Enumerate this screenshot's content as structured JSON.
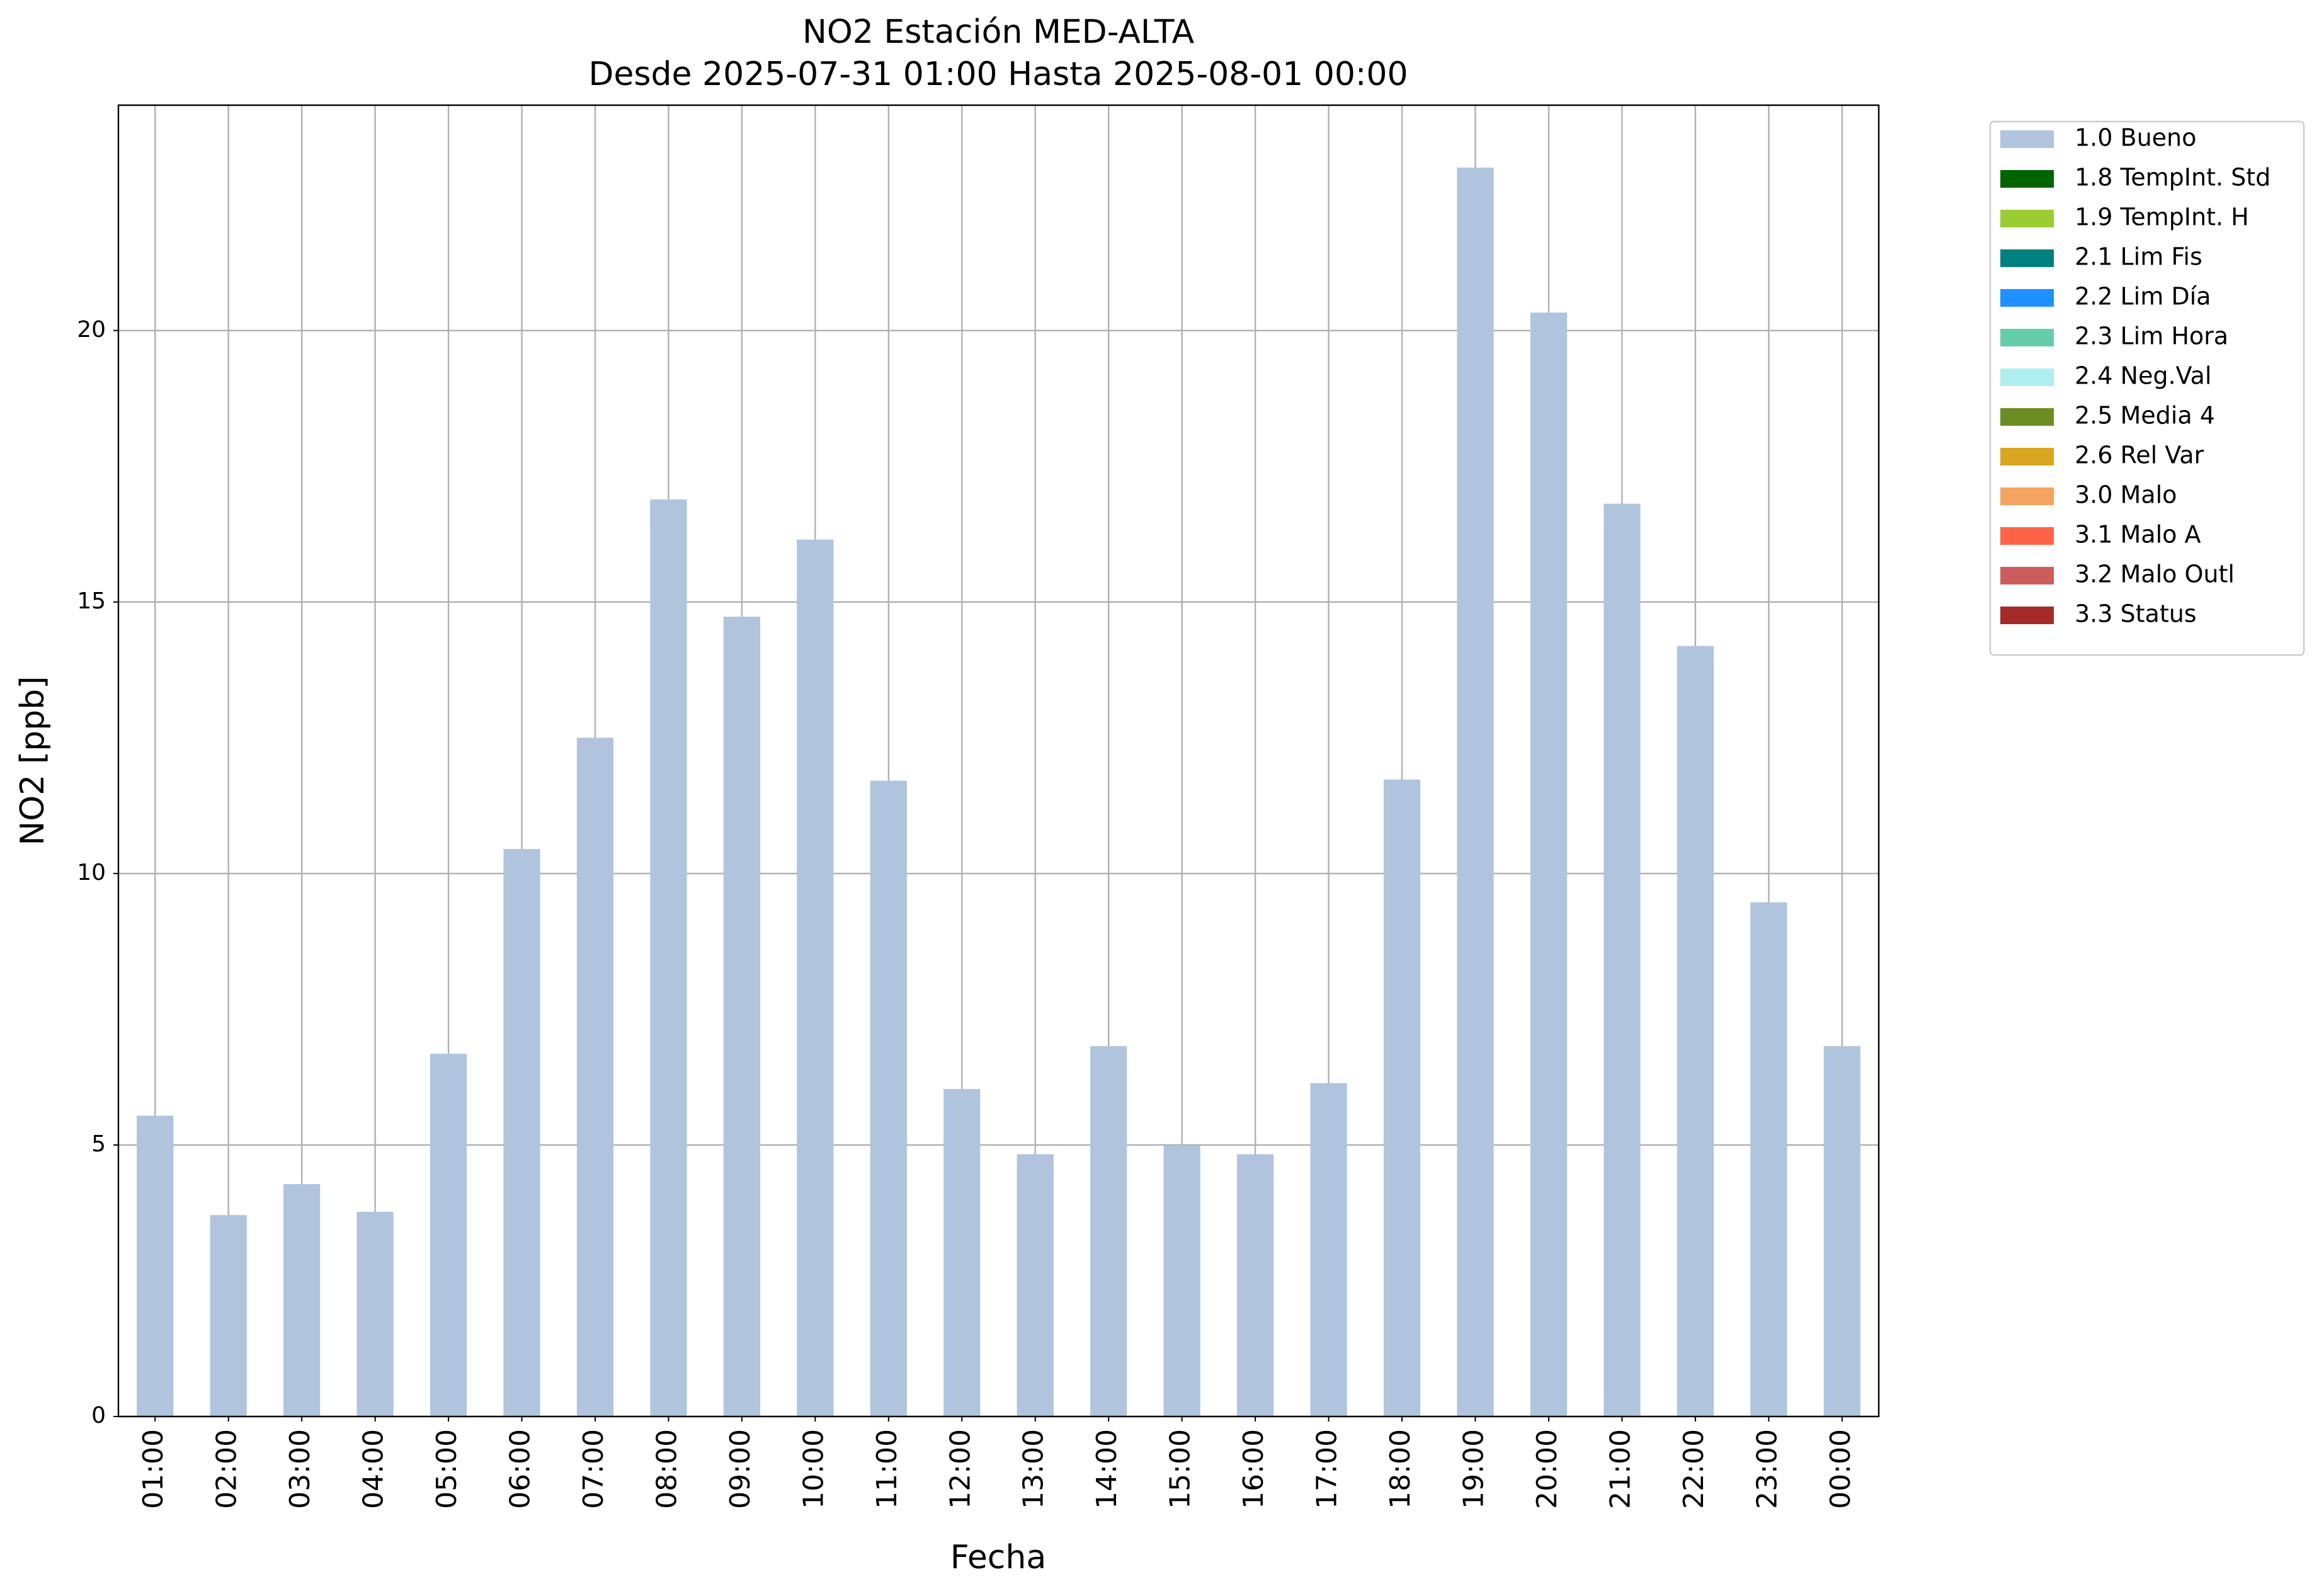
{
  "chart_data": {
    "type": "bar",
    "title": "NO2 Estación MED-ALTA",
    "subtitle": "Desde 2025-07-31 01:00 Hasta 2025-08-01 00:00",
    "x_label": "Fecha",
    "y_label": "NO2 [ppb]",
    "categories": [
      "01:00",
      "02:00",
      "03:00",
      "04:00",
      "05:00",
      "06:00",
      "07:00",
      "08:00",
      "09:00",
      "10:00",
      "11:00",
      "12:00",
      "13:00",
      "14:00",
      "15:00",
      "16:00",
      "17:00",
      "18:00",
      "19:00",
      "20:00",
      "21:00",
      "22:00",
      "23:00",
      "00:00"
    ],
    "series": [
      {
        "name": "1.0 Bueno",
        "color": "#b0c4de",
        "values": [
          5.54,
          3.71,
          4.28,
          3.77,
          6.68,
          10.45,
          12.5,
          16.89,
          14.73,
          16.15,
          11.71,
          6.03,
          4.83,
          6.82,
          4.99,
          4.83,
          6.14,
          11.73,
          23.0,
          20.33,
          16.81,
          14.19,
          9.47,
          6.82
        ]
      },
      {
        "name": "1.8 TempInt. Std",
        "color": "#006400",
        "values": [
          null,
          null,
          null,
          null,
          null,
          null,
          null,
          null,
          null,
          null,
          null,
          null,
          null,
          null,
          null,
          null,
          null,
          null,
          null,
          null,
          null,
          null,
          null,
          null
        ]
      },
      {
        "name": "1.9 TempInt. H",
        "color": "#9acd32",
        "values": [
          null,
          null,
          null,
          null,
          null,
          null,
          null,
          null,
          null,
          null,
          null,
          null,
          null,
          null,
          null,
          null,
          null,
          null,
          null,
          null,
          null,
          null,
          null,
          null
        ]
      },
      {
        "name": "2.1 Lim Fis",
        "color": "#008080",
        "values": [
          null,
          null,
          null,
          null,
          null,
          null,
          null,
          null,
          null,
          null,
          null,
          null,
          null,
          null,
          null,
          null,
          null,
          null,
          null,
          null,
          null,
          null,
          null,
          null
        ]
      },
      {
        "name": "2.2 Lim Día",
        "color": "#1e90ff",
        "values": [
          null,
          null,
          null,
          null,
          null,
          null,
          null,
          null,
          null,
          null,
          null,
          null,
          null,
          null,
          null,
          null,
          null,
          null,
          null,
          null,
          null,
          null,
          null,
          null
        ]
      },
      {
        "name": "2.3 Lim Hora",
        "color": "#66cdaa",
        "values": [
          null,
          null,
          null,
          null,
          null,
          null,
          null,
          null,
          null,
          null,
          null,
          null,
          null,
          null,
          null,
          null,
          null,
          null,
          null,
          null,
          null,
          null,
          null,
          null
        ]
      },
      {
        "name": "2.4 Neg.Val",
        "color": "#afeeee",
        "values": [
          null,
          null,
          null,
          null,
          null,
          null,
          null,
          null,
          null,
          null,
          null,
          null,
          null,
          null,
          null,
          null,
          null,
          null,
          null,
          null,
          null,
          null,
          null,
          null
        ]
      },
      {
        "name": "2.5 Media 4",
        "color": "#6b8e23",
        "values": [
          null,
          null,
          null,
          null,
          null,
          null,
          null,
          null,
          null,
          null,
          null,
          null,
          null,
          null,
          null,
          null,
          null,
          null,
          null,
          null,
          null,
          null,
          null,
          null
        ]
      },
      {
        "name": "2.6 Rel Var",
        "color": "#daa520",
        "values": [
          null,
          null,
          null,
          null,
          null,
          null,
          null,
          null,
          null,
          null,
          null,
          null,
          null,
          null,
          null,
          null,
          null,
          null,
          null,
          null,
          null,
          null,
          null,
          null
        ]
      },
      {
        "name": "3.0 Malo",
        "color": "#f4a460",
        "values": [
          null,
          null,
          null,
          null,
          null,
          null,
          null,
          null,
          null,
          null,
          null,
          null,
          null,
          null,
          null,
          null,
          null,
          null,
          null,
          null,
          null,
          null,
          null,
          null
        ]
      },
      {
        "name": "3.1 Malo A",
        "color": "#ff6347",
        "values": [
          null,
          null,
          null,
          null,
          null,
          null,
          null,
          null,
          null,
          null,
          null,
          null,
          null,
          null,
          null,
          null,
          null,
          null,
          null,
          null,
          null,
          null,
          null,
          null
        ]
      },
      {
        "name": "3.2 Malo Outl",
        "color": "#cd5c5c",
        "values": [
          null,
          null,
          null,
          null,
          null,
          null,
          null,
          null,
          null,
          null,
          null,
          null,
          null,
          null,
          null,
          null,
          null,
          null,
          null,
          null,
          null,
          null,
          null,
          null
        ]
      },
      {
        "name": "3.3 Status",
        "color": "#a52a2a",
        "values": [
          null,
          null,
          null,
          null,
          null,
          null,
          null,
          null,
          null,
          null,
          null,
          null,
          null,
          null,
          null,
          null,
          null,
          null,
          null,
          null,
          null,
          null,
          null,
          null
        ]
      }
    ],
    "ylim": [
      0,
      24.15
    ],
    "yticks": [
      0,
      5,
      10,
      15,
      20
    ],
    "grid": true,
    "legend": "outside upper right",
    "stacked": true
  }
}
